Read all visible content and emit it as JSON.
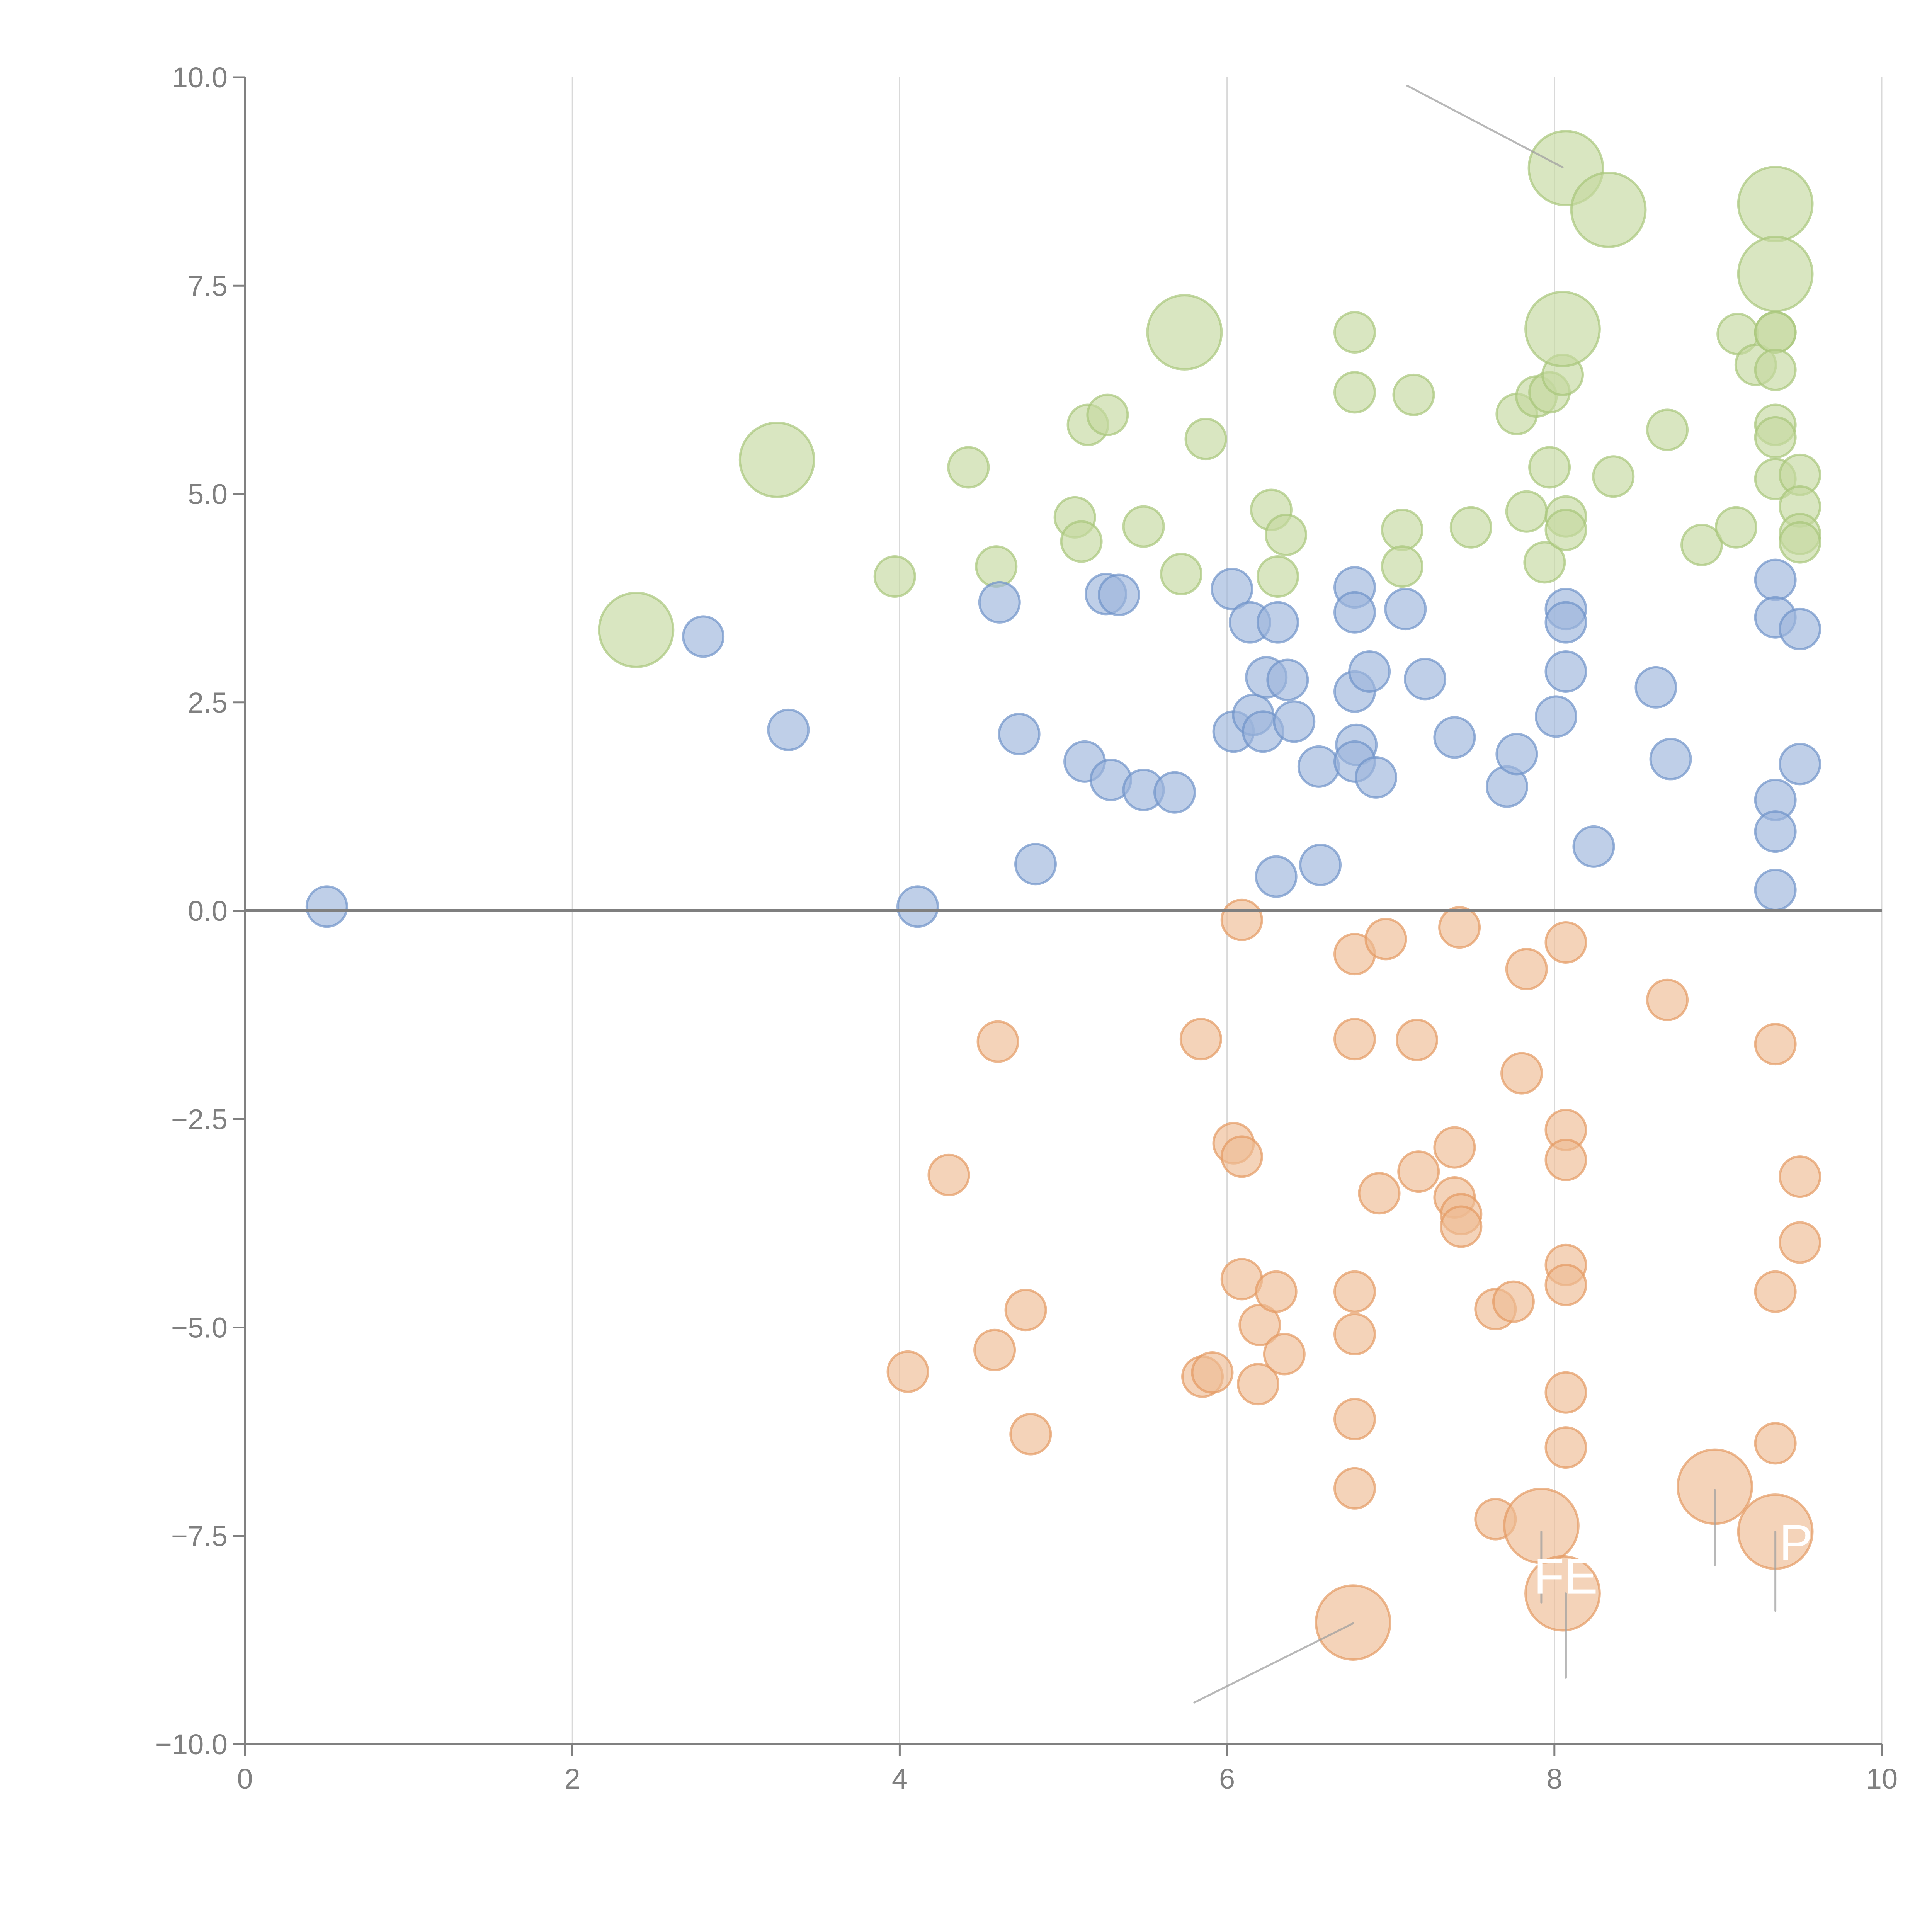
{
  "chart_data": {
    "type": "scatter",
    "subtype": "bubble",
    "title": "",
    "xlabel": "",
    "ylabel": "",
    "xlim": [
      0,
      10
    ],
    "ylim": [
      -10,
      10
    ],
    "grid": "vertical gridlines at x ticks",
    "zero_line": true,
    "x_ticks": [
      "0",
      "2",
      "4",
      "6",
      "8",
      "10"
    ],
    "x_tick_values": [
      0,
      2,
      4,
      6,
      8,
      10
    ],
    "y_ticks": [
      "10.0",
      "7.5",
      "5.0",
      "2.5",
      "0.0",
      "−2.5",
      "−5.0",
      "−7.5",
      "−10.0"
    ],
    "y_tick_values": [
      10,
      7.5,
      5,
      2.5,
      0,
      -2.5,
      -5,
      -7.5,
      -10
    ],
    "legend": "none",
    "size_units": "relative bubble area (small = 1)",
    "series": [
      {
        "name": "green",
        "fill": "#c4d9a0",
        "stroke": "#a8c67a",
        "points": [
          [
            2.39,
            3.37,
            3.4
          ],
          [
            3.25,
            5.41,
            3.4
          ],
          [
            3.97,
            4.01,
            1
          ],
          [
            4.42,
            5.32,
            1
          ],
          [
            4.59,
            4.13,
            1
          ],
          [
            5.07,
            4.72,
            1
          ],
          [
            5.11,
            4.43,
            1
          ],
          [
            5.15,
            5.83,
            1
          ],
          [
            5.27,
            5.95,
            1
          ],
          [
            5.49,
            4.61,
            1
          ],
          [
            5.72,
            4.04,
            1
          ],
          [
            5.74,
            6.94,
            3.4
          ],
          [
            5.87,
            5.66,
            1
          ],
          [
            6.27,
            4.81,
            1
          ],
          [
            6.31,
            4.01,
            1
          ],
          [
            6.36,
            4.51,
            1
          ],
          [
            6.78,
            6.94,
            1
          ],
          [
            6.78,
            6.22,
            1
          ],
          [
            7.07,
            4.57,
            1
          ],
          [
            7.07,
            4.13,
            1
          ],
          [
            7.14,
            6.19,
            1
          ],
          [
            7.49,
            4.6,
            1
          ],
          [
            7.77,
            5.96,
            1
          ],
          [
            7.83,
            4.79,
            1
          ],
          [
            7.89,
            6.17,
            1
          ],
          [
            7.94,
            4.18,
            1
          ],
          [
            7.97,
            6.22,
            1
          ],
          [
            7.97,
            5.32,
            1
          ],
          [
            8.05,
            6.43,
            1
          ],
          [
            8.07,
            8.91,
            3.4
          ],
          [
            8.05,
            6.98,
            3.4
          ],
          [
            8.07,
            4.73,
            1
          ],
          [
            8.07,
            4.57,
            1
          ],
          [
            8.33,
            8.41,
            3.4
          ],
          [
            8.36,
            5.21,
            1
          ],
          [
            8.69,
            5.77,
            1
          ],
          [
            8.9,
            4.39,
            1
          ],
          [
            9.11,
            4.6,
            1
          ],
          [
            9.12,
            6.92,
            1
          ],
          [
            9.23,
            6.55,
            1
          ],
          [
            9.35,
            8.48,
            3.4
          ],
          [
            9.35,
            7.64,
            3.4
          ],
          [
            9.35,
            6.94,
            1
          ],
          [
            9.35,
            6.94,
            1
          ],
          [
            9.35,
            6.49,
            1
          ],
          [
            9.35,
            5.83,
            1
          ],
          [
            9.35,
            5.68,
            1
          ],
          [
            9.35,
            5.18,
            1
          ],
          [
            9.5,
            5.23,
            1
          ],
          [
            9.5,
            4.85,
            1
          ],
          [
            9.5,
            4.52,
            1
          ],
          [
            9.5,
            4.42,
            1
          ]
        ]
      },
      {
        "name": "blue",
        "fill": "#9db5dc",
        "stroke": "#6f93c9",
        "points": [
          [
            0.5,
            0.05,
            1
          ],
          [
            2.8,
            3.29,
            1
          ],
          [
            3.32,
            2.17,
            1
          ],
          [
            4.11,
            0.05,
            1
          ],
          [
            4.61,
            3.7,
            1
          ],
          [
            4.73,
            2.12,
            1
          ],
          [
            4.83,
            0.56,
            1
          ],
          [
            5.13,
            1.79,
            1
          ],
          [
            5.26,
            3.8,
            1
          ],
          [
            5.34,
            3.79,
            1
          ],
          [
            5.29,
            1.57,
            1
          ],
          [
            5.49,
            1.45,
            1
          ],
          [
            5.68,
            1.42,
            1
          ],
          [
            6.03,
            3.86,
            1
          ],
          [
            6.04,
            2.15,
            1
          ],
          [
            6.14,
            3.46,
            1
          ],
          [
            6.16,
            2.35,
            1
          ],
          [
            6.22,
            2.15,
            1
          ],
          [
            6.24,
            2.8,
            1
          ],
          [
            6.3,
            0.41,
            1
          ],
          [
            6.31,
            3.46,
            1
          ],
          [
            6.37,
            2.77,
            1
          ],
          [
            6.41,
            2.27,
            1
          ],
          [
            6.56,
            1.73,
            1
          ],
          [
            6.57,
            0.55,
            1
          ],
          [
            6.78,
            3.88,
            1
          ],
          [
            6.78,
            3.58,
            1
          ],
          [
            6.78,
            2.63,
            1
          ],
          [
            6.79,
            1.99,
            1
          ],
          [
            6.78,
            1.79,
            1
          ],
          [
            6.87,
            2.87,
            1
          ],
          [
            6.91,
            1.6,
            1
          ],
          [
            7.09,
            3.62,
            1
          ],
          [
            7.21,
            2.78,
            1
          ],
          [
            7.39,
            2.08,
            1
          ],
          [
            7.71,
            1.49,
            1
          ],
          [
            7.77,
            1.88,
            1
          ],
          [
            8.01,
            2.33,
            1
          ],
          [
            8.07,
            3.62,
            1
          ],
          [
            8.07,
            3.46,
            1
          ],
          [
            8.07,
            2.87,
            1
          ],
          [
            8.24,
            0.77,
            1
          ],
          [
            8.62,
            2.68,
            1
          ],
          [
            8.71,
            1.82,
            1
          ],
          [
            9.35,
            3.97,
            1
          ],
          [
            9.35,
            3.52,
            1
          ],
          [
            9.35,
            1.33,
            1
          ],
          [
            9.35,
            0.95,
            1
          ],
          [
            9.35,
            0.25,
            1
          ],
          [
            9.5,
            3.38,
            1
          ],
          [
            9.5,
            1.76,
            1
          ]
        ]
      },
      {
        "name": "orange",
        "fill": "#eebb94",
        "stroke": "#e49a62",
        "points": [
          [
            4.05,
            -5.53,
            1
          ],
          [
            4.3,
            -3.17,
            1
          ],
          [
            4.58,
            -5.27,
            1
          ],
          [
            4.6,
            -1.57,
            1
          ],
          [
            4.77,
            -4.79,
            1
          ],
          [
            4.8,
            -6.28,
            1
          ],
          [
            5.84,
            -1.54,
            1
          ],
          [
            5.85,
            -5.59,
            1
          ],
          [
            5.91,
            -5.54,
            1
          ],
          [
            6.04,
            -2.79,
            1
          ],
          [
            6.09,
            -0.11,
            1
          ],
          [
            6.09,
            -2.95,
            1
          ],
          [
            6.09,
            -4.42,
            1
          ],
          [
            6.19,
            -5.68,
            1
          ],
          [
            6.2,
            -4.97,
            1
          ],
          [
            6.3,
            -4.57,
            1
          ],
          [
            6.35,
            -5.32,
            1
          ],
          [
            6.78,
            -0.52,
            1
          ],
          [
            6.78,
            -1.54,
            1
          ],
          [
            6.78,
            -4.57,
            1
          ],
          [
            6.78,
            -5.08,
            1
          ],
          [
            6.78,
            -6.1,
            1
          ],
          [
            6.78,
            -6.93,
            1
          ],
          [
            6.77,
            -8.54,
            3.4
          ],
          [
            6.93,
            -3.39,
            1
          ],
          [
            6.97,
            -0.34,
            1
          ],
          [
            7.16,
            -1.55,
            1
          ],
          [
            7.17,
            -3.13,
            1
          ],
          [
            7.39,
            -2.84,
            1
          ],
          [
            7.39,
            -3.44,
            1
          ],
          [
            7.42,
            -0.2,
            1
          ],
          [
            7.43,
            -3.64,
            1
          ],
          [
            7.43,
            -3.79,
            1
          ],
          [
            7.64,
            -4.78,
            1
          ],
          [
            7.64,
            -7.3,
            1
          ],
          [
            7.75,
            -4.69,
            1
          ],
          [
            7.8,
            -1.95,
            1
          ],
          [
            7.83,
            -0.7,
            1
          ],
          [
            7.92,
            -7.38,
            3.4
          ],
          [
            8.05,
            -8.19,
            3.4
          ],
          [
            8.07,
            -0.38,
            1
          ],
          [
            8.07,
            -2.63,
            1
          ],
          [
            8.07,
            -2.99,
            1
          ],
          [
            8.07,
            -4.25,
            1
          ],
          [
            8.07,
            -4.49,
            1
          ],
          [
            8.07,
            -5.78,
            1
          ],
          [
            8.07,
            -6.44,
            1
          ],
          [
            8.69,
            -1.07,
            1
          ],
          [
            8.98,
            -6.91,
            3.4
          ],
          [
            9.35,
            -1.6,
            1
          ],
          [
            9.35,
            -4.57,
            1
          ],
          [
            9.35,
            -6.39,
            1
          ],
          [
            9.35,
            -7.45,
            3.4
          ],
          [
            9.5,
            -3.19,
            1
          ],
          [
            9.5,
            -3.98,
            1
          ]
        ]
      }
    ],
    "annotations": [
      {
        "text": "FE",
        "x": 7.92,
        "y": -8.19,
        "leader_from": [
          8.07,
          -9.2
        ],
        "leader_to": [
          8.07,
          -8.19
        ]
      },
      {
        "text": "PI?",
        "x": 9.35,
        "y": -7.6,
        "leader_from": [
          9.35,
          -8.4
        ],
        "leader_to": [
          9.35,
          -7.45
        ]
      }
    ],
    "leader_lines": [
      {
        "from": [
          7.1,
          9.9
        ],
        "to": [
          8.05,
          8.92
        ]
      },
      {
        "from": [
          5.8,
          -9.5
        ],
        "to": [
          6.77,
          -8.55
        ]
      },
      {
        "from": [
          7.92,
          -7.45
        ],
        "to": [
          7.92,
          -8.3
        ]
      },
      {
        "from": [
          8.98,
          -6.95
        ],
        "to": [
          8.98,
          -7.85
        ]
      }
    ]
  }
}
